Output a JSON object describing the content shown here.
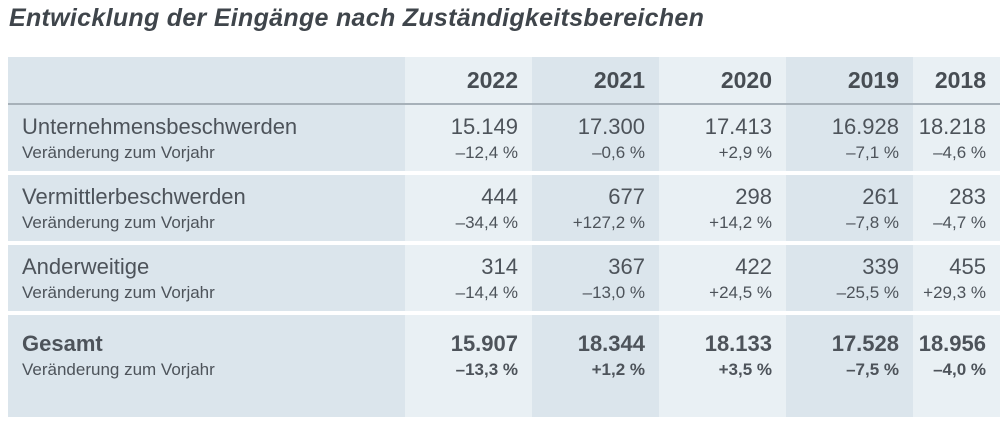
{
  "title": "Entwicklung der Eingänge nach Zuständigkeitsbereichen",
  "table": {
    "years": [
      "2022",
      "2021",
      "2020",
      "2019",
      "2018"
    ],
    "change_label": "Veränderung zum Vorjahr",
    "rows": [
      {
        "label": "Unternehmensbeschwerden",
        "values": [
          "15.149",
          "17.300",
          "17.413",
          "16.928",
          "18.218"
        ],
        "changes": [
          "–12,4 %",
          "–0,6 %",
          "+2,9 %",
          "–7,1 %",
          "–4,6 %"
        ],
        "bold": false
      },
      {
        "label": "Vermittlerbeschwerden",
        "values": [
          "444",
          "677",
          "298",
          "261",
          "283"
        ],
        "changes": [
          "–34,4 %",
          "+127,2 %",
          "+14,2 %",
          "–7,8 %",
          "–4,7 %"
        ],
        "bold": false
      },
      {
        "label": "Anderweitige",
        "values": [
          "314",
          "367",
          "422",
          "339",
          "455"
        ],
        "changes": [
          "–14,4 %",
          "–13,0 %",
          "+24,5 %",
          "–25,5 %",
          "+29,3 %"
        ],
        "bold": false
      },
      {
        "label": "Gesamt",
        "values": [
          "15.907",
          "18.344",
          "18.133",
          "17.528",
          "18.956"
        ],
        "changes": [
          "–13,3 %",
          "+1,2 %",
          "+3,5 %",
          "–7,5 %",
          "–4,0 %"
        ],
        "bold": true
      }
    ]
  },
  "colors": {
    "column_dark": "#dbe5ec",
    "column_light": "#e9f0f4",
    "header_line": "#a7b1b9",
    "text": "#4d535a",
    "title_text": "#3f454b",
    "row_separator": "#ffffff",
    "page_bg": "#ffffff"
  },
  "chart_data": {
    "type": "table",
    "title": "Entwicklung der Eingänge nach Zuständigkeitsbereichen",
    "columns": [
      "2022",
      "2021",
      "2020",
      "2019",
      "2018"
    ],
    "rows": [
      {
        "label": "Unternehmensbeschwerden",
        "values": [
          15149,
          17300,
          17413,
          16928,
          18218
        ],
        "change_vs_prev_year_pct": [
          -12.4,
          -0.6,
          2.9,
          -7.1,
          -4.6
        ]
      },
      {
        "label": "Vermittlerbeschwerden",
        "values": [
          444,
          677,
          298,
          261,
          283
        ],
        "change_vs_prev_year_pct": [
          -34.4,
          127.2,
          14.2,
          -7.8,
          -4.7
        ]
      },
      {
        "label": "Anderweitige",
        "values": [
          314,
          367,
          422,
          339,
          455
        ],
        "change_vs_prev_year_pct": [
          -14.4,
          -13.0,
          24.5,
          -25.5,
          29.3
        ]
      },
      {
        "label": "Gesamt",
        "values": [
          15907,
          18344,
          18133,
          17528,
          18956
        ],
        "change_vs_prev_year_pct": [
          -13.3,
          1.2,
          3.5,
          -7.5,
          -4.0
        ]
      }
    ]
  }
}
